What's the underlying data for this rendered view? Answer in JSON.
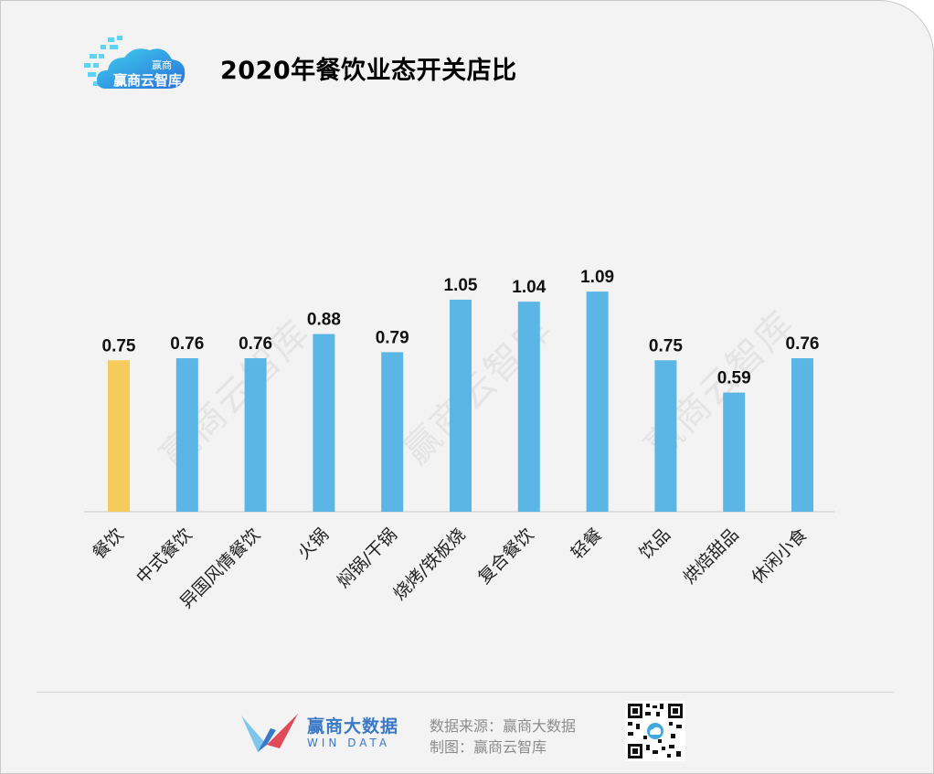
{
  "title": "2020年餐饮业态开关店比",
  "logo": {
    "text": "赢商云智库",
    "small": "赢商"
  },
  "watermark": "赢商云智库",
  "chart_data": {
    "type": "bar",
    "title": "2020年餐饮业态开关店比",
    "categories": [
      "餐饮",
      "中式餐饮",
      "异国风情餐饮",
      "火锅",
      "焖锅/干锅",
      "烧烤/铁板烧",
      "复合餐饮",
      "轻餐",
      "饮品",
      "烘焙甜品",
      "休闲小食"
    ],
    "values": [
      0.75,
      0.76,
      0.76,
      0.88,
      0.79,
      1.05,
      1.04,
      1.09,
      0.75,
      0.59,
      0.76
    ],
    "value_labels": [
      "0.75",
      "0.76",
      "0.76",
      "0.88",
      "0.79",
      "1.05",
      "1.04",
      "1.09",
      "0.75",
      "0.59",
      "0.76"
    ],
    "highlight_index": 0,
    "colors": {
      "bar": "#5bb5e5",
      "highlight": "#f5cb5c",
      "axis": "#c8c8c8"
    },
    "ylim": [
      0,
      1.2
    ],
    "grid": false,
    "xlabel": "",
    "ylabel": ""
  },
  "footer": {
    "brand_name": "赢商大数据",
    "brand_sub": "WIN DATA",
    "source": "数据来源：赢商大数据",
    "maker": "制图：赢商云智库"
  }
}
